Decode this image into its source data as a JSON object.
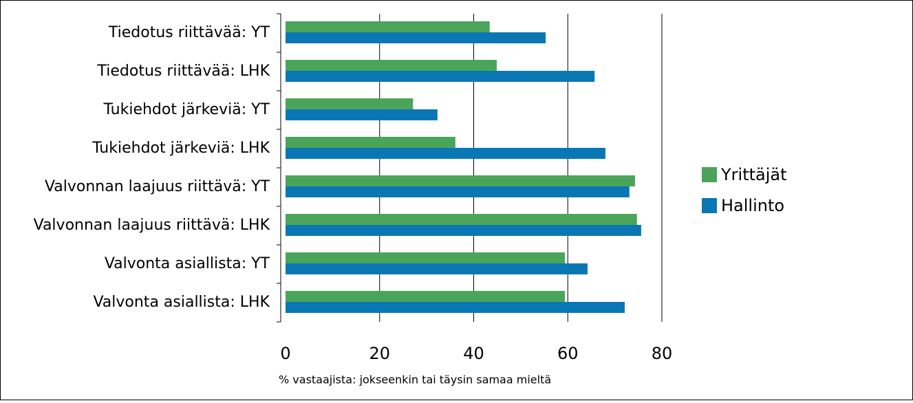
{
  "chart_data": {
    "type": "bar",
    "orientation": "horizontal",
    "categories": [
      "Tiedotus riittävää: YT",
      "Tiedotus riittävää: LHK",
      "Tukiehdot järkeviä: YT",
      "Tukiehdot järkeviä: LHK",
      "Valvonnan laajuus riittävä: YT",
      "Valvonnan laajuus riittävä: LHK",
      "Valvonta asiallista: YT",
      "Valvonta asiallista: LHK"
    ],
    "series": [
      {
        "name": "Yrittäjät",
        "color": "#4aa55a",
        "values": [
          43.4,
          44.9,
          27.1,
          36.1,
          74.3,
          74.7,
          59.4,
          59.4
        ]
      },
      {
        "name": "Hallinto",
        "color": "#0a77b4",
        "values": [
          55.3,
          65.7,
          32.3,
          68.0,
          73.1,
          75.6,
          64.2,
          72.1
        ]
      }
    ],
    "xlim": [
      0,
      80
    ],
    "xticks": [
      0,
      20,
      40,
      60,
      80
    ],
    "grid": true,
    "legend": "right",
    "xlabel": "% vastaajista: jokseenkin tai täysin samaa mieltä"
  }
}
